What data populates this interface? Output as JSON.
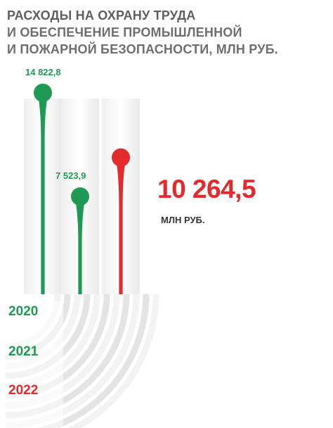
{
  "title_lines": [
    "РАСХОДЫ НА ОХРАНУ ТРУДА",
    "И ОБЕСПЕЧЕНИЕ ПРОМЫШЛЕННОЙ",
    "И  ПОЖАРНОЙ БЕЗОПАСНОСТИ, МЛН РУБ."
  ],
  "highlight": {
    "value": "10 264,5",
    "unit": "МЛН РУБ."
  },
  "colors": {
    "green": "#1f9a55",
    "red": "#e32b2e",
    "title": "#6e6e6e"
  },
  "chart_data": {
    "type": "bar",
    "title": "РАСХОДЫ НА ОХРАНУ ТРУДА И ОБЕСПЕЧЕНИЕ ПРОМЫШЛЕННОЙ И  ПОЖАРНОЙ БЕЗОПАСНОСТИ, МЛН РУБ.",
    "categories": [
      "2020",
      "2021",
      "2022"
    ],
    "values": [
      14822.8,
      7523.9,
      10264.5
    ],
    "data_labels": [
      "14 822,8",
      "7 523,9",
      "10 264,5"
    ],
    "bar_colors": [
      "#1f9a55",
      "#1f9a55",
      "#e32b2e"
    ],
    "unit": "МЛН РУБ.",
    "ylim": [
      0,
      16000
    ],
    "grid": false
  }
}
